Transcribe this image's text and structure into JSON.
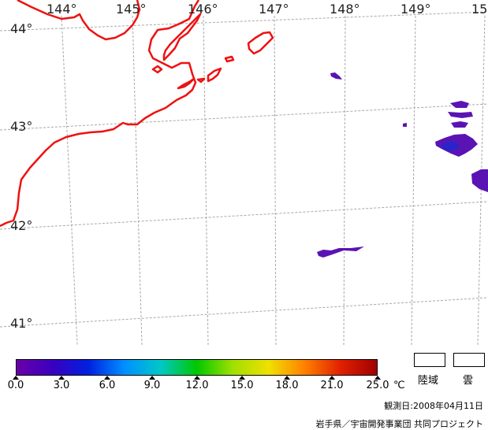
{
  "map": {
    "lon_labels": [
      "144°",
      "145°",
      "146°",
      "147°",
      "148°",
      "149°",
      "15"
    ],
    "lat_labels": [
      "44°",
      "43°",
      "42°",
      "41°"
    ],
    "colors": {
      "coastline": "#ee1111",
      "gridline": "#a8a8a8",
      "sst_patch": "#5a14b4",
      "sst_patch_warm": "#2a24c8"
    }
  },
  "colorbar": {
    "tick_labels": [
      "0.0",
      "3.0",
      "6.0",
      "9.0",
      "12.0",
      "15.0",
      "18.0",
      "21.0",
      "25.0"
    ],
    "unit": "℃",
    "gradient_colors": [
      "#6a00a8",
      "#3a00c0",
      "#0020e0",
      "#0090ff",
      "#00c8c8",
      "#00c800",
      "#a0e000",
      "#f0e000",
      "#ff8000",
      "#e02000",
      "#a00000"
    ]
  },
  "legend": {
    "land_label": "陸域",
    "cloud_label": "雲"
  },
  "footer": {
    "observation_date": "観測日:2008年04月11日",
    "credit": "岩手県／宇宙開発事業団 共同プロジェクト"
  }
}
